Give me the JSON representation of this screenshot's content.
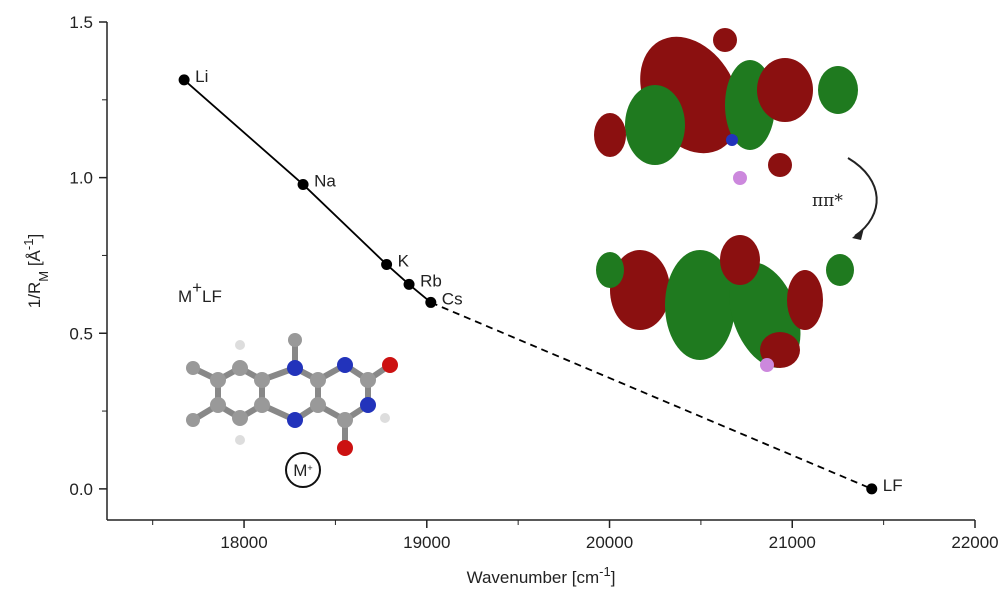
{
  "chart_data": {
    "type": "line",
    "xlabel": [
      {
        "text": "Wavenumber [cm"
      },
      {
        "text": "-1",
        "sup": true
      },
      {
        "text": "]"
      }
    ],
    "ylabel": [
      {
        "text": "1/R"
      },
      {
        "text": "M",
        "sub": true
      },
      {
        "text": " [Å"
      },
      {
        "text": "-1",
        "sup": true
      },
      {
        "text": "]"
      }
    ],
    "xlim": [
      17250,
      22000
    ],
    "ylim": [
      -0.1,
      1.5
    ],
    "xticks": [
      18000,
      19000,
      20000,
      21000,
      22000
    ],
    "xminor": [
      17500,
      18500,
      19500,
      20500,
      21500
    ],
    "yticks": [
      {
        "value": 0,
        "label": "0.0"
      },
      0.5,
      {
        "value": 1,
        "label": "1.0"
      },
      1.5
    ],
    "yminor": [
      0.25,
      0.75,
      1.25
    ],
    "series": [
      {
        "color": "#000000",
        "dash": false,
        "markers": [
          true,
          true,
          true,
          true,
          true
        ],
        "x": [
          17672,
          18323,
          18780,
          18903,
          19022
        ],
        "values": [
          1.314,
          0.978,
          0.721,
          0.657,
          0.599
        ],
        "labels": [
          "Li",
          "Na",
          "K",
          "Rb",
          "Cs"
        ]
      },
      {
        "color": "#000000",
        "dash": true,
        "markers": [
          false,
          true
        ],
        "x": [
          19022,
          21435
        ],
        "values": [
          0.599,
          0
        ],
        "labels": [
          null,
          "LF"
        ]
      }
    ],
    "annotations": {
      "molecule": [
        {
          "text": "M"
        },
        {
          "text": "+",
          "sup": true
        },
        {
          "text": "LF"
        }
      ],
      "ion": [
        {
          "text": "M"
        },
        {
          "text": "+",
          "sup": true
        }
      ],
      "transition": "ππ*"
    }
  }
}
